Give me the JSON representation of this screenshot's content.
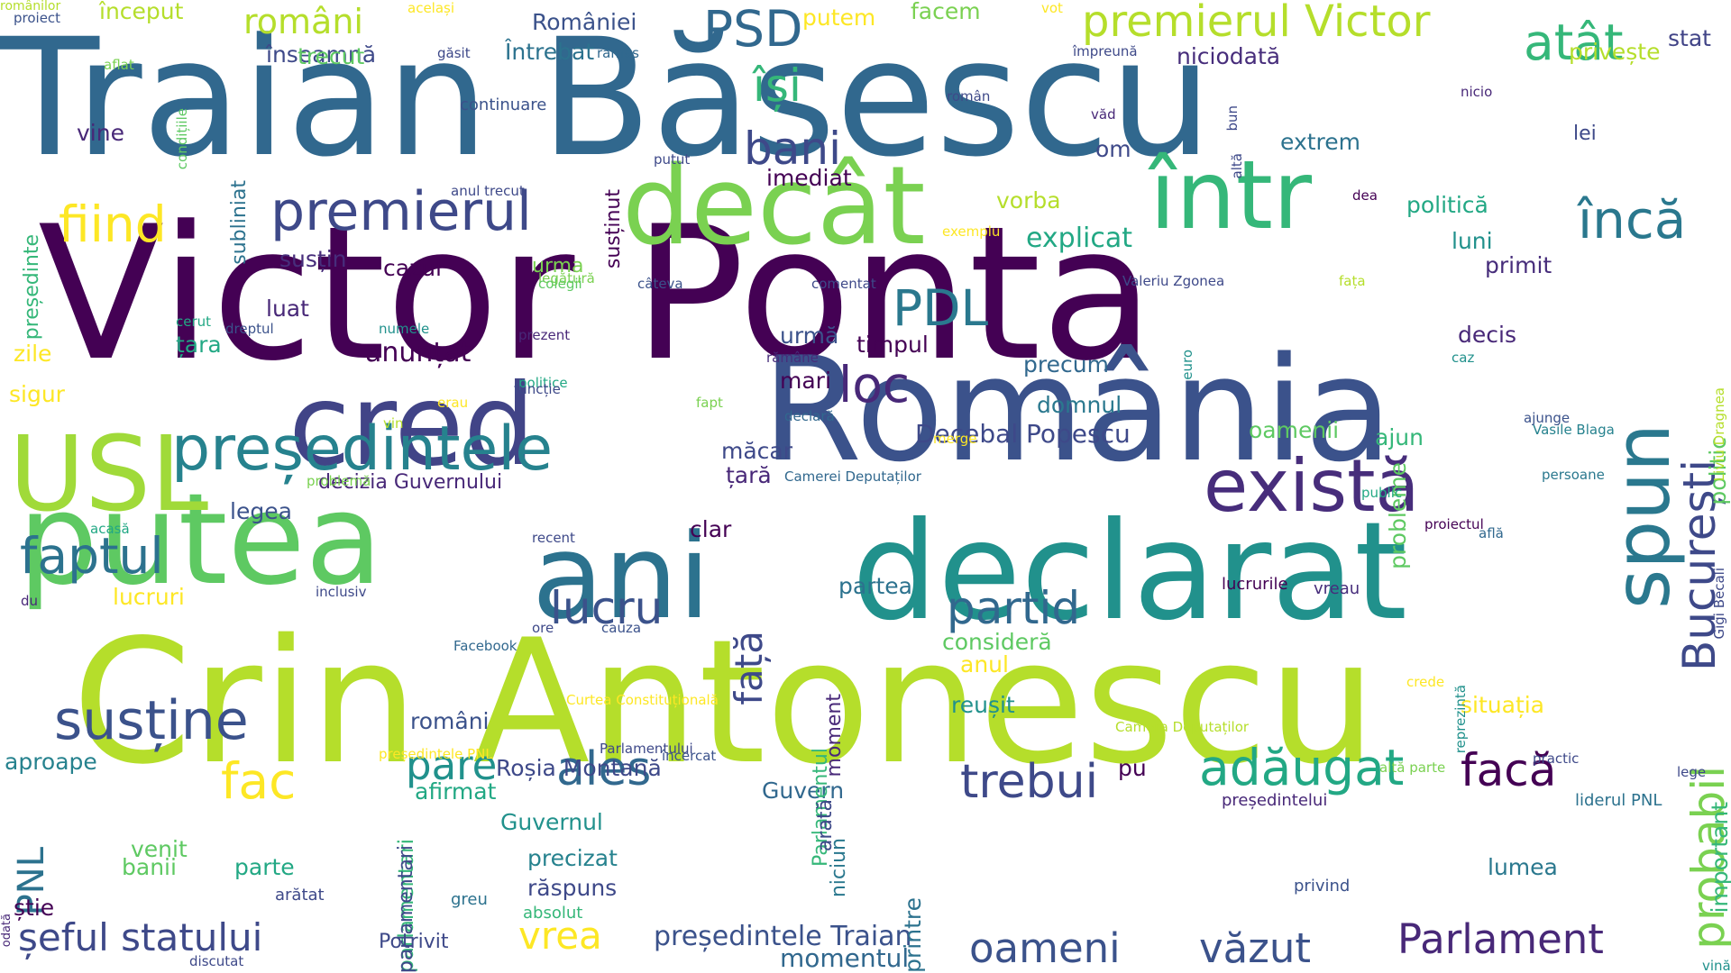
{
  "cloud": {
    "words": [
      {
        "text": "Victor Ponta",
        "color": "#440154"
      },
      {
        "text": "Traian Băsescu",
        "color": "#31688e"
      },
      {
        "text": "Crin Antonescu",
        "color": "#b5de2b"
      },
      {
        "text": "România",
        "color": "#3b528b"
      },
      {
        "text": "declarat",
        "color": "#21918c"
      },
      {
        "text": "putea",
        "color": "#5ec962"
      },
      {
        "text": "ani",
        "color": "#2c728e"
      },
      {
        "text": "cred",
        "color": "#414487"
      },
      {
        "text": "decât",
        "color": "#7ad151"
      },
      {
        "text": "într",
        "color": "#35b779"
      },
      {
        "text": "există",
        "color": "#472d7b"
      },
      {
        "text": "USL",
        "color": "#a0da39"
      },
      {
        "text": "spun",
        "color": "#2a788e"
      },
      {
        "text": "președintele",
        "color": "#26828e"
      },
      {
        "text": "susține",
        "color": "#3b528b"
      },
      {
        "text": "premierul Victor",
        "color": "#b5de2b"
      },
      {
        "text": "premierul",
        "color": "#3e4989"
      },
      {
        "text": "faptul",
        "color": "#2c728e"
      },
      {
        "text": "lucru",
        "color": "#3b528b"
      },
      {
        "text": "adăugat",
        "color": "#22a884"
      },
      {
        "text": "ales",
        "color": "#31688e"
      },
      {
        "text": "fiind",
        "color": "#fde725"
      },
      {
        "text": "încă",
        "color": "#2a788e"
      },
      {
        "text": "partid",
        "color": "#31688e"
      },
      {
        "text": "trebui",
        "color": "#3e4989"
      },
      {
        "text": "Parlament",
        "color": "#482878"
      },
      {
        "text": "oameni",
        "color": "#3b528b"
      },
      {
        "text": "văzut",
        "color": "#3b528b"
      },
      {
        "text": "șeful statului",
        "color": "#3e4989"
      },
      {
        "text": "PDL",
        "color": "#2a788e"
      },
      {
        "text": "PSD",
        "color": "#31688e"
      },
      {
        "text": "atât",
        "color": "#35b779"
      },
      {
        "text": "fac",
        "color": "#fde725"
      },
      {
        "text": "facă",
        "color": "#440154"
      },
      {
        "text": "probabil",
        "color": "#7ad151"
      },
      {
        "text": "București",
        "color": "#3e4989"
      },
      {
        "text": "bani",
        "color": "#3e4989"
      },
      {
        "text": "loc",
        "color": "#482878"
      },
      {
        "text": "pare",
        "color": "#21918c"
      },
      {
        "text": "români",
        "color": "#b5de2b"
      },
      {
        "text": "își",
        "color": "#35b779"
      },
      {
        "text": "PNL",
        "color": "#2c728e"
      },
      {
        "text": "față",
        "color": "#3e4989"
      },
      {
        "text": "vrea",
        "color": "#fde725"
      },
      {
        "text": "președintele Traian",
        "color": "#3b528b"
      },
      {
        "text": "momentul",
        "color": "#31688e"
      },
      {
        "text": "Decebal Popescu",
        "color": "#3e4989"
      },
      {
        "text": "decizia Guvernului",
        "color": "#482878"
      },
      {
        "text": "anunțat",
        "color": "#440154"
      },
      {
        "text": "cazul",
        "color": "#440154"
      },
      {
        "text": "explicat",
        "color": "#22a884"
      },
      {
        "text": "vorba",
        "color": "#b5de2b"
      },
      {
        "text": "imediat",
        "color": "#440154"
      },
      {
        "text": "extrem",
        "color": "#2c728e"
      },
      {
        "text": "niciodată",
        "color": "#472d7b"
      },
      {
        "text": "României",
        "color": "#3b528b"
      },
      {
        "text": "Întrebat",
        "color": "#2c728e"
      },
      {
        "text": "înseamnă",
        "color": "#3e4989"
      },
      {
        "text": "trecut",
        "color": "#5ec962"
      },
      {
        "text": "început",
        "color": "#b5de2b"
      },
      {
        "text": "putem",
        "color": "#fde725"
      },
      {
        "text": "facem",
        "color": "#7ad151"
      },
      {
        "text": "privește",
        "color": "#b5de2b"
      },
      {
        "text": "stat",
        "color": "#414487"
      },
      {
        "text": "politică",
        "color": "#22a884"
      },
      {
        "text": "luni",
        "color": "#21918c"
      },
      {
        "text": "primit",
        "color": "#472d7b"
      },
      {
        "text": "decis",
        "color": "#482878"
      },
      {
        "text": "urmă",
        "color": "#3b528b"
      },
      {
        "text": "timpul",
        "color": "#440154"
      },
      {
        "text": "precum",
        "color": "#31688e"
      },
      {
        "text": "domnul",
        "color": "#2a788e"
      },
      {
        "text": "mari",
        "color": "#440154"
      },
      {
        "text": "măcar",
        "color": "#3e4989"
      },
      {
        "text": "țară",
        "color": "#482878"
      },
      {
        "text": "oamenii",
        "color": "#5ec962"
      },
      {
        "text": "ajun",
        "color": "#35b779"
      },
      {
        "text": "probleme",
        "color": "#5ec962"
      },
      {
        "text": "politic",
        "color": "#5ec962"
      },
      {
        "text": "legea",
        "color": "#3b528b"
      },
      {
        "text": "clar",
        "color": "#440154"
      },
      {
        "text": "anul",
        "color": "#fde725"
      },
      {
        "text": "partea",
        "color": "#2c728e"
      },
      {
        "text": "consideră",
        "color": "#5ec962"
      },
      {
        "text": "reușit",
        "color": "#21918c"
      },
      {
        "text": "români",
        "color": "#3b528b"
      },
      {
        "text": "Roșia Montană",
        "color": "#3e4989"
      },
      {
        "text": "Guvern",
        "color": "#31688e"
      },
      {
        "text": "Guvernul",
        "color": "#21918c"
      },
      {
        "text": "pu",
        "color": "#440154"
      },
      {
        "text": "precizat",
        "color": "#26828e"
      },
      {
        "text": "răspuns",
        "color": "#3e4989"
      },
      {
        "text": "lumea",
        "color": "#2a788e"
      },
      {
        "text": "situația",
        "color": "#fde725"
      },
      {
        "text": "important",
        "color": "#35b779"
      },
      {
        "text": "parlamentari",
        "color": "#35b779"
      },
      {
        "text": "Parlamentul",
        "color": "#35b779"
      },
      {
        "text": "moment",
        "color": "#482878"
      },
      {
        "text": "arată",
        "color": "#3e4989"
      },
      {
        "text": "niciun",
        "color": "#2a788e"
      },
      {
        "text": "printre",
        "color": "#2c728e"
      },
      {
        "text": "Potrivit",
        "color": "#3e4989"
      },
      {
        "text": "parlamentari",
        "color": "#3e4989"
      },
      {
        "text": "venit",
        "color": "#5ec962"
      },
      {
        "text": "banii",
        "color": "#5ec962"
      },
      {
        "text": "parte",
        "color": "#22a884"
      },
      {
        "text": "aproape",
        "color": "#26828e"
      },
      {
        "text": "afirmat",
        "color": "#22a884"
      },
      {
        "text": "lucruri",
        "color": "#fde725"
      },
      {
        "text": "zile",
        "color": "#fde725"
      },
      {
        "text": "sigur",
        "color": "#fde725"
      },
      {
        "text": "luat",
        "color": "#482878"
      },
      {
        "text": "țara",
        "color": "#22a884"
      },
      {
        "text": "susțin",
        "color": "#472d7b"
      },
      {
        "text": "urma",
        "color": "#7ad151"
      },
      {
        "text": "susținut",
        "color": "#440154"
      },
      {
        "text": "subliniat",
        "color": "#2c728e"
      },
      {
        "text": "vine",
        "color": "#482878"
      },
      {
        "text": "președinte",
        "color": "#35b779"
      },
      {
        "text": "continuare",
        "color": "#3b528b"
      },
      {
        "text": "om",
        "color": "#3e4989"
      },
      {
        "text": "lei",
        "color": "#3e4989"
      },
      {
        "text": "știe",
        "color": "#440154"
      },
      {
        "text": "arătat",
        "color": "#3e4989"
      },
      {
        "text": "greu",
        "color": "#2c728e"
      },
      {
        "text": "absolut",
        "color": "#35b779"
      },
      {
        "text": "privind",
        "color": "#3b528b"
      },
      {
        "text": "liderul PNL",
        "color": "#2c728e"
      },
      {
        "text": "președintelui",
        "color": "#482878"
      },
      {
        "text": "lucrurile",
        "color": "#440154"
      },
      {
        "text": "vreau",
        "color": "#472d7b"
      },
      {
        "text": "Vasile Blaga",
        "color": "#26828e"
      },
      {
        "text": "Liviu Dragnea",
        "color": "#b5de2b"
      },
      {
        "text": "proiect",
        "color": "#3b528b"
      },
      {
        "text": "același",
        "color": "#fde725"
      },
      {
        "text": "vot",
        "color": "#fde725"
      },
      {
        "text": "găsit",
        "color": "#3e4989"
      },
      {
        "text": "rămas",
        "color": "#31688e"
      },
      {
        "text": "împreună",
        "color": "#3e4989"
      },
      {
        "text": "aflat",
        "color": "#7ad151"
      },
      {
        "text": "condițiile",
        "color": "#5ec962"
      },
      {
        "text": "anul trecut",
        "color": "#3e4989"
      },
      {
        "text": "putut",
        "color": "#3e4989"
      },
      {
        "text": "văd",
        "color": "#482878"
      },
      {
        "text": "bun",
        "color": "#3e4989"
      },
      {
        "text": "nicio",
        "color": "#482878"
      },
      {
        "text": "altă",
        "color": "#3e4989"
      },
      {
        "text": "dea",
        "color": "#440154"
      },
      {
        "text": "exemplu",
        "color": "#fde725"
      },
      {
        "text": "român",
        "color": "#3e4989"
      },
      {
        "text": "legătură",
        "color": "#7ad151"
      },
      {
        "text": "colegii",
        "color": "#5ec962"
      },
      {
        "text": "câteva",
        "color": "#3b528b"
      },
      {
        "text": "comentat",
        "color": "#3e4989"
      },
      {
        "text": "Valeriu Zgonea",
        "color": "#3e4989"
      },
      {
        "text": "fața",
        "color": "#b5de2b"
      },
      {
        "text": "cerut",
        "color": "#22a884"
      },
      {
        "text": "dreptul",
        "color": "#3b528b"
      },
      {
        "text": "numele",
        "color": "#21918c"
      },
      {
        "text": "prezent",
        "color": "#482878"
      },
      {
        "text": "rămâne",
        "color": "#472d7b"
      },
      {
        "text": "euro",
        "color": "#21918c"
      },
      {
        "text": "caz",
        "color": "#21918c"
      },
      {
        "text": "politice",
        "color": "#22a884"
      },
      {
        "text": "funcție",
        "color": "#3e4989"
      },
      {
        "text": "vin",
        "color": "#b5de2b"
      },
      {
        "text": "erau",
        "color": "#fde725"
      },
      {
        "text": "fapt",
        "color": "#7ad151"
      },
      {
        "text": "declară",
        "color": "#31688e"
      },
      {
        "text": "merge",
        "color": "#fde725"
      },
      {
        "text": "problemă",
        "color": "#7ad151"
      },
      {
        "text": "acasă",
        "color": "#22a884"
      },
      {
        "text": "proiectul",
        "color": "#440154"
      },
      {
        "text": "ajunge",
        "color": "#3b528b"
      },
      {
        "text": "află",
        "color": "#31688e"
      },
      {
        "text": "vină",
        "color": "#21918c"
      },
      {
        "text": "recent",
        "color": "#3e4989"
      },
      {
        "text": "Camerei Deputaților",
        "color": "#31688e"
      },
      {
        "text": "public",
        "color": "#22a884"
      },
      {
        "text": "persoane",
        "color": "#2a788e"
      },
      {
        "text": "Gigi Becali",
        "color": "#3e4989"
      },
      {
        "text": "du",
        "color": "#482878"
      },
      {
        "text": "inclusiv",
        "color": "#3e4989"
      },
      {
        "text": "cauza",
        "color": "#3b528b"
      },
      {
        "text": "Facebook",
        "color": "#31688e"
      },
      {
        "text": "ore",
        "color": "#3e4989"
      },
      {
        "text": "Curtea Constituțională",
        "color": "#fde725"
      },
      {
        "text": "reprezintă",
        "color": "#21918c"
      },
      {
        "text": "Camera Deputaților",
        "color": "#b5de2b"
      },
      {
        "text": "crede",
        "color": "#fde725"
      },
      {
        "text": "practic",
        "color": "#3e4989"
      },
      {
        "text": "odată",
        "color": "#482878"
      },
      {
        "text": "președintele PNL",
        "color": "#fde725"
      },
      {
        "text": "Parlamentului",
        "color": "#3e4989"
      },
      {
        "text": "încercat",
        "color": "#3b528b"
      },
      {
        "text": "altă parte",
        "color": "#7ad151"
      },
      {
        "text": "lege",
        "color": "#3e4989"
      },
      {
        "text": "discutat",
        "color": "#3e4989"
      },
      {
        "text": "românilor",
        "color": "#b5de2b"
      }
    ]
  }
}
